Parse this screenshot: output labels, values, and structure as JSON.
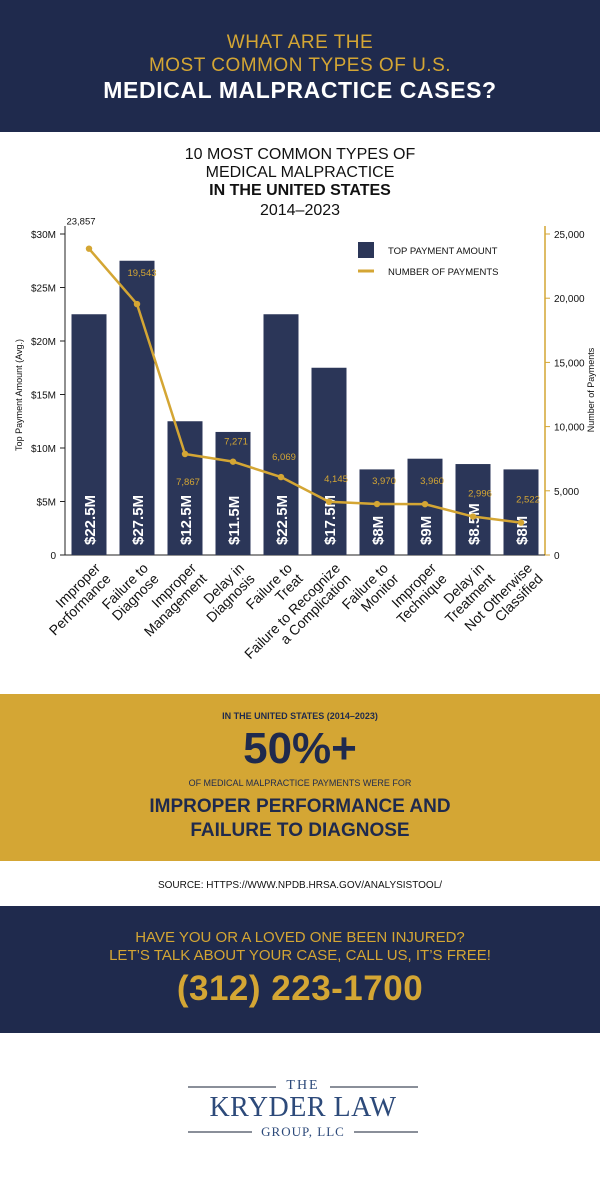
{
  "header": {
    "line1": "WHAT ARE THE",
    "line2": "MOST COMMON TYPES OF U.S.",
    "line3": "MEDICAL MALPRACTICE CASES?"
  },
  "chart_data": {
    "type": "bar",
    "title_lines": [
      "10 MOST COMMON TYPES OF",
      "MEDICAL MALPRACTICE",
      "IN THE UNITED STATES",
      "2014–2023"
    ],
    "categories": [
      [
        "Improper",
        "Performance"
      ],
      [
        "Failure to",
        "Diagnose"
      ],
      [
        "Improper",
        "Management"
      ],
      [
        "Delay in",
        "Diagnosis"
      ],
      [
        "Failure to",
        "Treat"
      ],
      [
        "Failure to Recognize",
        "a Complication"
      ],
      [
        "Failure to",
        "Monitor"
      ],
      [
        "Improper",
        "Technique"
      ],
      [
        "Delay in",
        "Treatment"
      ],
      [
        "Not Otherwise",
        "Classified"
      ]
    ],
    "series": [
      {
        "name": "TOP PAYMENT AMOUNT",
        "type": "bar",
        "axis": "left",
        "values": [
          22.5,
          27.5,
          12.5,
          11.5,
          22.5,
          17.5,
          8,
          9,
          8.5,
          8
        ],
        "labels": [
          "$22.5M",
          "$27.5M",
          "$12.5M",
          "$11.5M",
          "$22.5M",
          "$17.5M",
          "$8M",
          "$9M",
          "$8.5M",
          "$8M"
        ]
      },
      {
        "name": "NUMBER OF PAYMENTS",
        "type": "line",
        "axis": "right",
        "values": [
          23857,
          19543,
          7867,
          7271,
          6069,
          4145,
          3970,
          3960,
          2996,
          2522
        ],
        "labels": [
          "23,857",
          "19,543",
          "7,867",
          "7,271",
          "6,069",
          "4,145",
          "3,970",
          "3,960",
          "2,996",
          "2,522"
        ]
      }
    ],
    "ylabel": "Top Payment Amount (Avg.)",
    "ylim": [
      0,
      30
    ],
    "yticks": [
      "0",
      "$5M",
      "$10M",
      "$15M",
      "$20M",
      "$25M",
      "$30M"
    ],
    "y2label": "Number of Payments",
    "y2lim": [
      0,
      25000
    ],
    "y2ticks": [
      "0",
      "5,000",
      "10,000",
      "15,000",
      "20,000",
      "25,000"
    ],
    "legend_position": "top-right",
    "colors": {
      "bar": "#2b3658",
      "line": "#d4a634",
      "bar_label": "#ffffff"
    }
  },
  "stat": {
    "context": "IN THE UNITED STATES (2014–2023)",
    "figure": "50%+",
    "desc": "OF MEDICAL MALPRACTICE PAYMENTS WERE FOR",
    "highlight1": "IMPROPER PERFORMANCE AND",
    "highlight2": "FAILURE TO DIAGNOSE"
  },
  "source": "SOURCE: HTTPS://WWW.NPDB.HRSA.GOV/ANALYSISTOOL/",
  "cta": {
    "line1": "HAVE YOU OR A LOVED ONE BEEN INJURED?",
    "line2": "LET’S TALK ABOUT YOUR CASE, CALL US, IT’S FREE!",
    "phone": "(312) 223-1700"
  },
  "logo": {
    "the": "THE",
    "name": "KRYDER LAW",
    "sub": "GROUP, LLC"
  },
  "colors": {
    "navy": "#1f2a4d",
    "gold": "#d4a634"
  }
}
